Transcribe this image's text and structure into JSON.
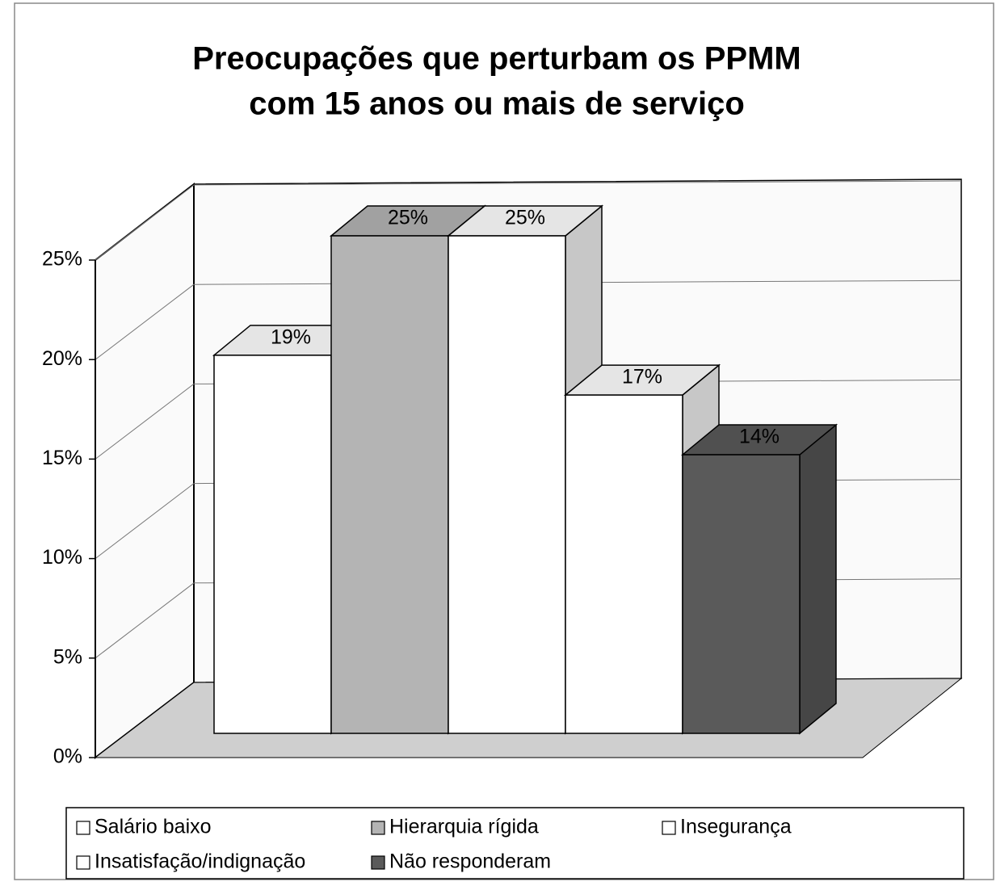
{
  "chart_data": {
    "type": "bar3d",
    "title": [
      "Preocupações que perturbam os PPMM",
      "com 15 anos ou mais de serviço"
    ],
    "series": [
      {
        "name": "Salário baixo",
        "color": "#ffffff",
        "values": [
          19
        ],
        "value_labels": [
          "19%"
        ]
      },
      {
        "name": "Hierarquia rígida",
        "color": "#b4b4b4",
        "values": [
          25
        ],
        "value_labels": [
          "25%"
        ]
      },
      {
        "name": "Insegurança",
        "color": "#ffffff",
        "values": [
          25
        ],
        "value_labels": [
          "25%"
        ]
      },
      {
        "name": "Insatisfação/indignação",
        "color": "#ffffff",
        "values": [
          17
        ],
        "value_labels": [
          "17%"
        ]
      },
      {
        "name": "Não responderam",
        "color": "#5a5a5a",
        "values": [
          14
        ],
        "value_labels": [
          "14%"
        ]
      }
    ],
    "ylim": [
      0,
      25
    ],
    "yticks": [
      {
        "value": 0,
        "label": "0%"
      },
      {
        "value": 5,
        "label": "5%"
      },
      {
        "value": 10,
        "label": "10%"
      },
      {
        "value": 15,
        "label": "15%"
      },
      {
        "value": 20,
        "label": "20%"
      },
      {
        "value": 25,
        "label": "25%"
      }
    ],
    "grid": true,
    "legend": "bottom"
  }
}
